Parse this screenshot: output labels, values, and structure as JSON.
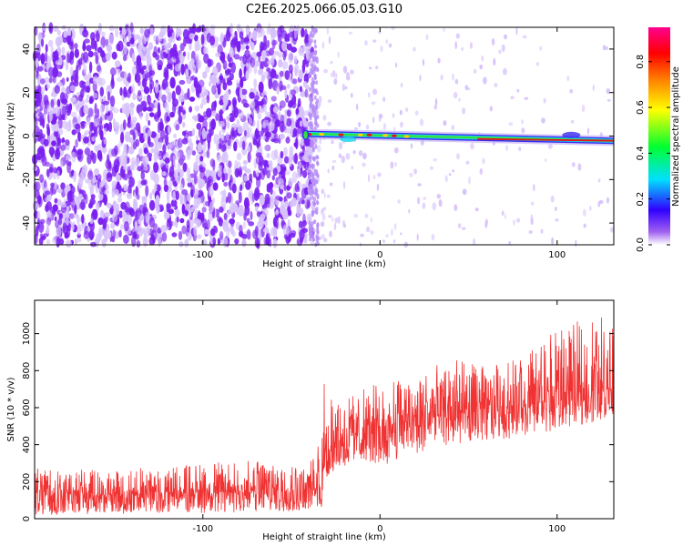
{
  "title": "C2E6.2025.066.05.03.G10",
  "colors": {
    "snr_line": "#f03232",
    "frame": "#000000",
    "spectrogram_noise": "#7a1ff0",
    "spectrogram_noise_light": "#d7c2fb",
    "signal_peak": "#e0161b"
  },
  "chart_data": [
    {
      "type": "heatmap",
      "xlabel": "Height of straight line (km)",
      "ylabel": "Frequency (Hz)",
      "xlim": [
        -195,
        132
      ],
      "ylim": [
        -50,
        50
      ],
      "x_ticks": [
        -100,
        0,
        100
      ],
      "y_ticks": [
        40,
        20,
        0,
        -20,
        -40
      ],
      "grid": false,
      "colorbar": {
        "label": "Normalized spectral amplitude",
        "range": [
          0.0,
          0.95
        ],
        "ticks": [
          0.0,
          0.2,
          0.4,
          0.6,
          0.8
        ],
        "colormap": "hsv-rainbow (purple→blue→cyan→green→yellow→red→magenta)",
        "placement": "right"
      },
      "description_values": {
        "noise_region_x": [
          -195,
          -38
        ],
        "signal_start_x": -42,
        "signal_end_x": 132,
        "signal_frequency_hz": [
          1.2,
          -2.0
        ],
        "signal_amplitude_peak": 0.85
      }
    },
    {
      "type": "line",
      "xlabel": "Height of straight line (km)",
      "ylabel": "SNR (10 * v/v)",
      "xlim": [
        -195,
        132
      ],
      "ylim": [
        0,
        1180
      ],
      "x_ticks": [
        -100,
        0,
        100
      ],
      "y_ticks": [
        0,
        200,
        400,
        600,
        800,
        1000
      ],
      "grid": false,
      "series": [
        {
          "x": [
            -195,
            -150,
            -100,
            -60,
            -40,
            -33,
            -32,
            -25,
            -10,
            0,
            20,
            40,
            60,
            80,
            100,
            120,
            132
          ],
          "y_low": [
            20,
            25,
            30,
            35,
            40,
            40,
            180,
            260,
            320,
            280,
            350,
            400,
            420,
            440,
            480,
            520,
            560
          ],
          "y_mean": [
            130,
            130,
            140,
            155,
            160,
            165,
            340,
            420,
            460,
            470,
            540,
            570,
            590,
            620,
            650,
            690,
            720
          ],
          "y_high": [
            280,
            265,
            300,
            320,
            300,
            430,
            800,
            620,
            700,
            740,
            780,
            870,
            820,
            880,
            1020,
            1100,
            1150
          ]
        }
      ]
    }
  ]
}
